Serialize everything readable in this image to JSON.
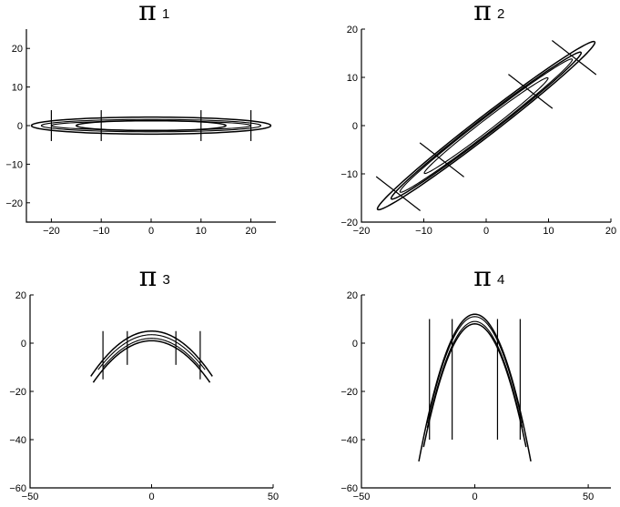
{
  "chart_data": [
    {
      "type": "contour",
      "title_symbol": "π",
      "title_index": "1",
      "xlim": [
        -25,
        25
      ],
      "ylim": [
        -25,
        25
      ],
      "xticks": [
        -20,
        -10,
        0,
        10,
        20
      ],
      "yticks": [
        -20,
        -10,
        0,
        10,
        20
      ],
      "contours": [
        {
          "shape": "ellipse",
          "cx": 0,
          "cy": 0,
          "rx": 24,
          "ry": 2.2,
          "angle_deg": 0
        },
        {
          "shape": "ellipse",
          "cx": 0,
          "cy": 0,
          "rx": 15,
          "ry": 1.3,
          "angle_deg": 0
        },
        {
          "shape": "ellipse",
          "cx": 0,
          "cy": 0,
          "rx": 20,
          "ry": 1.2,
          "angle_deg": 0
        },
        {
          "shape": "ellipse",
          "cx": 0,
          "cy": 0,
          "rx": 22,
          "ry": 1.6,
          "angle_deg": 0
        }
      ],
      "markers": [
        {
          "x": -20,
          "y": 0,
          "angle_deg": 90,
          "half_length": 4
        },
        {
          "x": -10,
          "y": 0,
          "angle_deg": 90,
          "half_length": 4
        },
        {
          "x": 10,
          "y": 0,
          "angle_deg": 90,
          "half_length": 4
        },
        {
          "x": 20,
          "y": 0,
          "angle_deg": 90,
          "half_length": 4
        }
      ]
    },
    {
      "type": "contour",
      "title_symbol": "π",
      "title_index": "2",
      "xlim": [
        -20,
        20
      ],
      "ylim": [
        -20,
        20
      ],
      "xticks": [
        -20,
        -10,
        0,
        10,
        20
      ],
      "yticks": [
        -20,
        -10,
        0,
        10,
        20
      ],
      "contours": [
        {
          "shape": "ellipse",
          "cx": 0,
          "cy": 0,
          "rx": 24.6,
          "ry": 1.8,
          "angle_deg": 45
        },
        {
          "shape": "ellipse",
          "cx": 0,
          "cy": 0,
          "rx": 21.5,
          "ry": 1.5,
          "angle_deg": 45
        },
        {
          "shape": "ellipse",
          "cx": 0,
          "cy": 0,
          "rx": 19.5,
          "ry": 1.3,
          "angle_deg": 45
        },
        {
          "shape": "ellipse",
          "cx": 0,
          "cy": 0,
          "rx": 14.0,
          "ry": 1.0,
          "angle_deg": 45
        }
      ],
      "markers": [
        {
          "x": -14.1,
          "y": -14.1,
          "angle_deg": -45,
          "half_length": 5
        },
        {
          "x": -7.1,
          "y": -7.1,
          "angle_deg": -45,
          "half_length": 5
        },
        {
          "x": 7.1,
          "y": 7.1,
          "angle_deg": -45,
          "half_length": 5
        },
        {
          "x": 14.1,
          "y": 14.1,
          "angle_deg": -45,
          "half_length": 5
        }
      ]
    },
    {
      "type": "contour",
      "title_symbol": "π",
      "title_index": "3",
      "xlim": [
        -50,
        50
      ],
      "ylim": [
        -60,
        20
      ],
      "xticks": [
        -50,
        0,
        50
      ],
      "yticks": [
        -60,
        -40,
        -20,
        0,
        20
      ],
      "contours": [
        {
          "shape": "parabola",
          "a": 5,
          "k": 0.03,
          "x_min": -25,
          "x_max": 25
        },
        {
          "shape": "parabola",
          "a": 1,
          "k": 0.03,
          "x_min": -24,
          "x_max": 24
        },
        {
          "shape": "parabola",
          "a": 3.5,
          "k": 0.03,
          "x_min": -22,
          "x_max": 22
        },
        {
          "shape": "parabola",
          "a": 2,
          "k": 0.03,
          "x_min": -20,
          "x_max": 20
        }
      ],
      "markers": [
        {
          "x": -20,
          "y": -5,
          "angle_deg": 90,
          "half_length": 10
        },
        {
          "x": -10,
          "y": -2,
          "angle_deg": 90,
          "half_length": 7
        },
        {
          "x": 10,
          "y": -2,
          "angle_deg": 90,
          "half_length": 7
        },
        {
          "x": 20,
          "y": -5,
          "angle_deg": 90,
          "half_length": 10
        }
      ]
    },
    {
      "type": "contour",
      "title_symbol": "π",
      "title_index": "4",
      "xlim": [
        -50,
        60
      ],
      "ylim": [
        -60,
        20
      ],
      "xticks": [
        -50,
        0,
        50
      ],
      "yticks": [
        -60,
        -40,
        -20,
        0,
        20
      ],
      "contours": [
        {
          "shape": "parabola",
          "a": 12,
          "k": 0.1,
          "x_min": -24.7,
          "x_max": 24.7
        },
        {
          "shape": "parabola",
          "a": 8,
          "k": 0.1,
          "x_min": -22.6,
          "x_max": 22.6
        },
        {
          "shape": "parabola",
          "a": 11,
          "k": 0.1,
          "x_min": -21,
          "x_max": 21
        },
        {
          "shape": "parabola",
          "a": 9,
          "k": 0.1,
          "x_min": -21,
          "x_max": 21
        }
      ],
      "markers": [
        {
          "x": -20,
          "y": -15,
          "angle_deg": 90,
          "half_length": 25
        },
        {
          "x": -10,
          "y": -15,
          "angle_deg": 90,
          "half_length": 25
        },
        {
          "x": 10,
          "y": -15,
          "angle_deg": 90,
          "half_length": 25
        },
        {
          "x": 20,
          "y": -15,
          "angle_deg": 90,
          "half_length": 25
        }
      ]
    }
  ]
}
